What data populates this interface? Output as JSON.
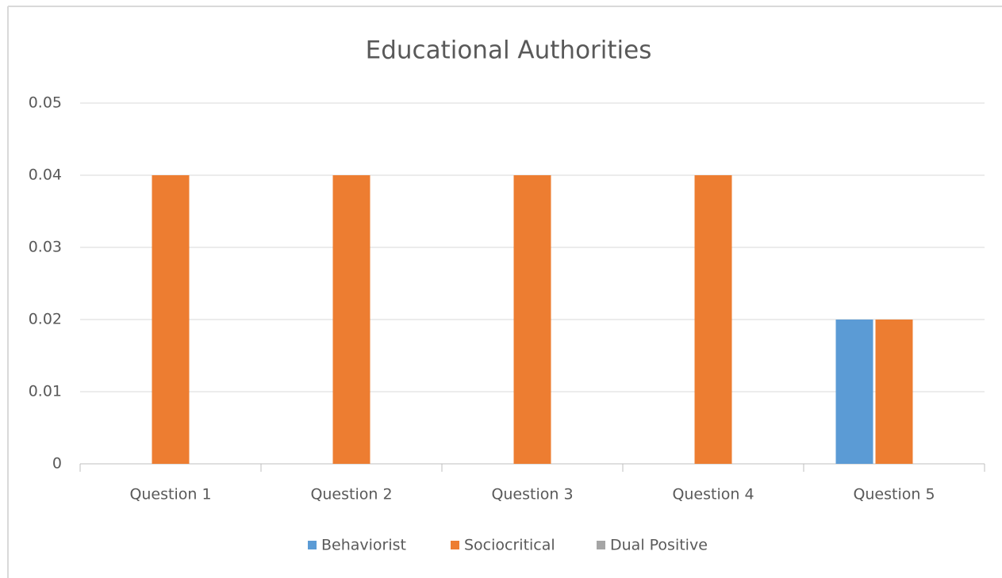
{
  "chart_data": {
    "type": "bar",
    "title": "Educational Authorities",
    "categories": [
      "Question 1",
      "Question 2",
      "Question 3",
      "Question 4",
      "Question 5"
    ],
    "series": [
      {
        "name": "Behaviorist",
        "color": "#5b9bd5",
        "values": [
          0,
          0,
          0,
          0,
          0.02
        ]
      },
      {
        "name": "Sociocritical",
        "color": "#ed7d31",
        "values": [
          0.04,
          0.04,
          0.04,
          0.04,
          0.02
        ]
      },
      {
        "name": "Dual Positive",
        "color": "#a5a5a5",
        "values": [
          0,
          0,
          0,
          0,
          0
        ]
      }
    ],
    "ylim": [
      0,
      0.05
    ],
    "yticks": [
      0,
      0.01,
      0.02,
      0.03,
      0.04,
      0.05
    ],
    "grid": true,
    "legend": "bottom"
  }
}
